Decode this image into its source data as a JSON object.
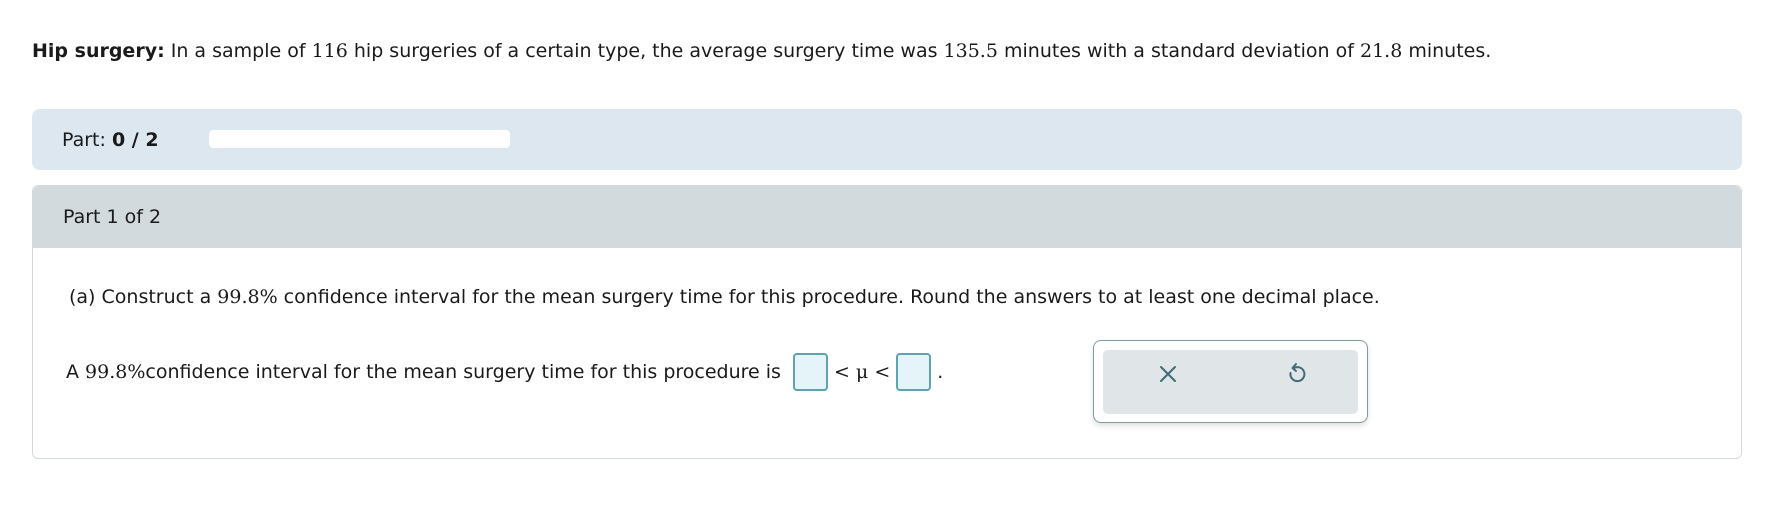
{
  "problem": {
    "label": "Hip surgery:",
    "t1": " In a sample of ",
    "n": "116",
    "t2": " hip surgeries of a certain type, the average surgery time was ",
    "mean": "135.5",
    "t3": " minutes with a standard deviation of ",
    "sd": "21.8",
    "t4": " minutes."
  },
  "progress": {
    "label": "Part:",
    "value": "0 / 2",
    "fraction": 0
  },
  "part": {
    "header": "Part 1 of 2",
    "q1": "(a) Construct a ",
    "q_conf": "99.8%",
    "q2": " confidence interval for the mean surgery time for this procedure. Round the answers to at least one decimal place.",
    "a1": "A ",
    "a_conf": "99.8%",
    "a2": " confidence interval for the mean surgery time for this procedure is",
    "mid": "< μ <",
    "end": "."
  },
  "tools": {
    "clear_icon": "x-icon",
    "reset_icon": "undo-icon"
  },
  "colors": {
    "accent": "#4d8a9a",
    "input_bg": "#e5f4f9",
    "part_bar": "#dce7f0"
  }
}
